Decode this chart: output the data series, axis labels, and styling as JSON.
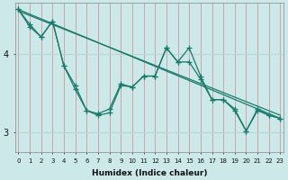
{
  "xlabel": "Humidex (Indice chaleur)",
  "bg_color": "#cce8e8",
  "grid_color_v": "#e08080",
  "grid_color_h": "#b8d8d8",
  "line_color": "#1a7a6a",
  "x_ticks": [
    0,
    1,
    2,
    3,
    4,
    5,
    6,
    7,
    8,
    9,
    10,
    11,
    12,
    13,
    14,
    15,
    16,
    17,
    18,
    19,
    20,
    21,
    22,
    23
  ],
  "y_ticks": [
    3,
    4
  ],
  "ylim": [
    2.75,
    4.65
  ],
  "xlim": [
    -0.3,
    23.3
  ],
  "series_smooth1": {
    "x": [
      0,
      23
    ],
    "y": [
      4.57,
      3.18
    ]
  },
  "series_smooth2": {
    "x": [
      0,
      23
    ],
    "y": [
      4.55,
      3.22
    ]
  },
  "series_wiggly1": {
    "x": [
      0,
      1,
      2,
      3,
      4,
      5,
      6,
      7,
      8,
      9,
      10,
      11,
      12,
      13,
      14,
      15,
      16,
      17,
      18,
      19,
      20,
      21,
      22,
      23
    ],
    "y": [
      4.57,
      4.38,
      4.22,
      4.42,
      3.85,
      3.6,
      3.28,
      3.24,
      3.3,
      3.62,
      3.58,
      3.72,
      3.72,
      4.08,
      3.9,
      4.08,
      3.72,
      3.42,
      3.42,
      3.3,
      3.02,
      3.3,
      3.22,
      3.18
    ]
  },
  "series_wiggly2": {
    "x": [
      0,
      1,
      2,
      3,
      4,
      5,
      6,
      7,
      8,
      9,
      10,
      11,
      12,
      13,
      14,
      15,
      16,
      17,
      18,
      19,
      20,
      21,
      22,
      23
    ],
    "y": [
      4.57,
      4.35,
      4.22,
      4.42,
      3.85,
      3.55,
      3.28,
      3.22,
      3.25,
      3.6,
      3.58,
      3.72,
      3.72,
      4.08,
      3.9,
      3.9,
      3.68,
      3.42,
      3.42,
      3.28,
      3.02,
      3.28,
      3.22,
      3.18
    ]
  }
}
